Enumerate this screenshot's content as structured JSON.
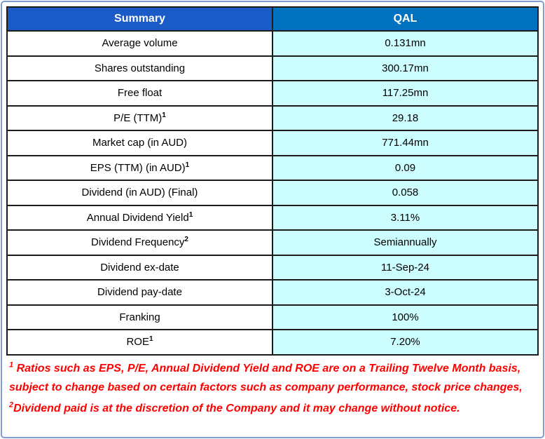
{
  "table": {
    "header": {
      "summary": "Summary",
      "qal": "QAL"
    },
    "rows": [
      {
        "label": "Average volume",
        "sup": "",
        "value": "0.131mn"
      },
      {
        "label": "Shares outstanding",
        "sup": "",
        "value": "300.17mn"
      },
      {
        "label": "Free float",
        "sup": "",
        "value": "117.25mn"
      },
      {
        "label": "P/E (TTM)",
        "sup": "1",
        "value": "29.18"
      },
      {
        "label": "Market cap (in AUD)",
        "sup": "",
        "value": "771.44mn"
      },
      {
        "label": "EPS (TTM) (in AUD)",
        "sup": "1",
        "value": "0.09"
      },
      {
        "label": "Dividend (in AUD) (Final)",
        "sup": "",
        "value": "0.058"
      },
      {
        "label": "Annual Dividend Yield",
        "sup": "1",
        "value": "3.11%"
      },
      {
        "label": "Dividend Frequency",
        "sup": "2",
        "value": "Semiannually"
      },
      {
        "label": "Dividend ex-date",
        "sup": "",
        "value": "11-Sep-24"
      },
      {
        "label": "Dividend pay-date",
        "sup": "",
        "value": "3-Oct-24"
      },
      {
        "label": "Franking",
        "sup": "",
        "value": "100%"
      },
      {
        "label": "ROE",
        "sup": "1",
        "value": "7.20%"
      }
    ]
  },
  "footnotes": [
    {
      "marker": "1",
      "text": " Ratios such as EPS, P/E, Annual Dividend Yield and ROE are on a Trailing Twelve Month basis, subject to change based on certain factors such as company performance, stock price changes,"
    },
    {
      "marker": "2",
      "text": "Dividend paid is at the discretion of the Company and it may change without notice."
    }
  ],
  "colors": {
    "frame_blue": "#7E9CD6",
    "header_left_bg": "#1A5BC7",
    "header_right_bg": "#0071BE",
    "value_bg": "#CCFDFF",
    "grid": "#1C1C1C",
    "footnote_red": "#FF0000"
  }
}
